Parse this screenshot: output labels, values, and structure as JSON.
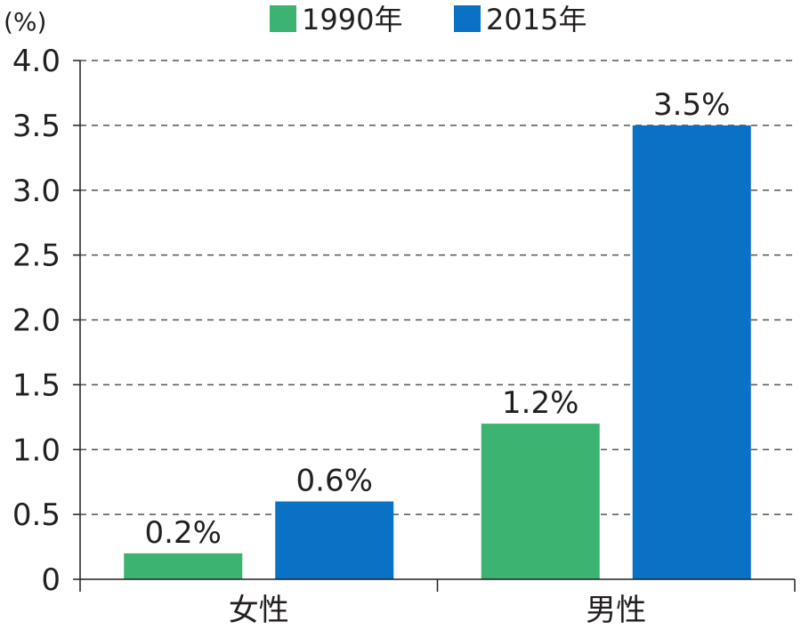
{
  "chart_data": {
    "type": "bar",
    "title": "",
    "xlabel": "",
    "ylabel": "(%)",
    "ylim": [
      0,
      4.0
    ],
    "yticks": [
      "0",
      "0.5",
      "1.0",
      "1.5",
      "2.0",
      "2.5",
      "3.0",
      "3.5",
      "4.0"
    ],
    "categories": [
      "女性",
      "男性"
    ],
    "series": [
      {
        "name": "1990年",
        "color": "#3cb371",
        "values": [
          0.2,
          1.2
        ],
        "labels": [
          "0.2%",
          "1.2%"
        ]
      },
      {
        "name": "2015年",
        "color": "#0a72c4",
        "values": [
          0.6,
          3.5
        ],
        "labels": [
          "0.6%",
          "3.5%"
        ]
      }
    ],
    "grid": true,
    "legend_position": "top"
  }
}
